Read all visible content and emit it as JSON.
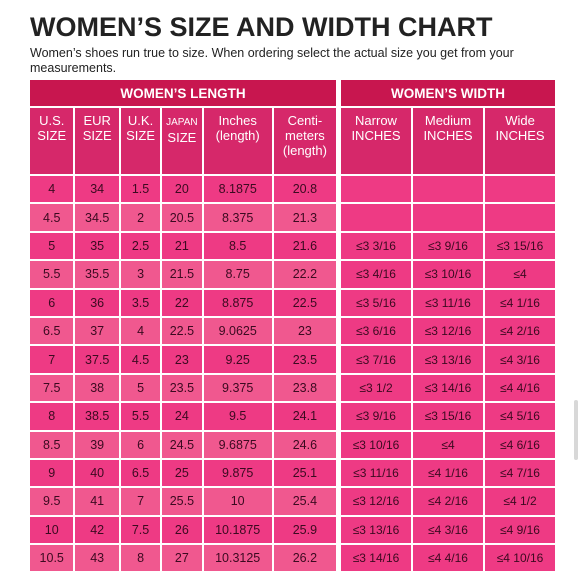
{
  "title": "WOMEN’S SIZE AND WIDTH CHART",
  "subtitle": "Women’s shoes run true to size.  When ordering select the actual size you get from your measurements.",
  "length": {
    "header": "WOMEN’S LENGTH",
    "columns": [
      [
        "U.S.",
        "SIZE"
      ],
      [
        "EUR",
        "SIZE"
      ],
      [
        "U.K.",
        "SIZE"
      ],
      [
        "JAPAN",
        "SIZE"
      ],
      [
        "Inches",
        "(length)"
      ],
      [
        "Centi-",
        "meters",
        "(length)"
      ]
    ],
    "rows": [
      [
        "4",
        "34",
        "1.5",
        "20",
        "8.1875",
        "20.8"
      ],
      [
        "4.5",
        "34.5",
        "2",
        "20.5",
        "8.375",
        "21.3"
      ],
      [
        "5",
        "35",
        "2.5",
        "21",
        "8.5",
        "21.6"
      ],
      [
        "5.5",
        "35.5",
        "3",
        "21.5",
        "8.75",
        "22.2"
      ],
      [
        "6",
        "36",
        "3.5",
        "22",
        "8.875",
        "22.5"
      ],
      [
        "6.5",
        "37",
        "4",
        "22.5",
        "9.0625",
        "23"
      ],
      [
        "7",
        "37.5",
        "4.5",
        "23",
        "9.25",
        "23.5"
      ],
      [
        "7.5",
        "38",
        "5",
        "23.5",
        "9.375",
        "23.8"
      ],
      [
        "8",
        "38.5",
        "5.5",
        "24",
        "9.5",
        "24.1"
      ],
      [
        "8.5",
        "39",
        "6",
        "24.5",
        "9.6875",
        "24.6"
      ],
      [
        "9",
        "40",
        "6.5",
        "25",
        "9.875",
        "25.1"
      ],
      [
        "9.5",
        "41",
        "7",
        "25.5",
        "10",
        "25.4"
      ],
      [
        "10",
        "42",
        "7.5",
        "26",
        "10.1875",
        "25.9"
      ],
      [
        "10.5",
        "43",
        "8",
        "27",
        "10.3125",
        "26.2"
      ]
    ]
  },
  "width": {
    "header": "WOMEN’S WIDTH",
    "columns": [
      [
        "Narrow",
        "INCHES"
      ],
      [
        "Medium",
        "INCHES"
      ],
      [
        "Wide",
        "INCHES"
      ]
    ],
    "rows": [
      [
        "",
        "",
        ""
      ],
      [
        "",
        "",
        ""
      ],
      [
        "≤3 3/16",
        "≤3 9/16",
        "≤3 15/16"
      ],
      [
        "≤3 4/16",
        "≤3 10/16",
        "≤4"
      ],
      [
        "≤3 5/16",
        "≤3 11/16",
        "≤4 1/16"
      ],
      [
        "≤3 6/16",
        "≤3 12/16",
        "≤4 2/16"
      ],
      [
        "≤3 7/16",
        "≤3 13/16",
        "≤4 3/16"
      ],
      [
        "≤3 1/2",
        "≤3 14/16",
        "≤4 4/16"
      ],
      [
        "≤3 9/16",
        "≤3 15/16",
        "≤4 5/16"
      ],
      [
        "≤3 10/16",
        "≤4",
        "≤4 6/16"
      ],
      [
        "≤3 11/16",
        "≤4 1/16",
        "≤4 7/16"
      ],
      [
        "≤3 12/16",
        "≤4 2/16",
        "≤4 1/2"
      ],
      [
        "≤3 13/16",
        "≤4 3/16",
        "≤4 9/16"
      ],
      [
        "≤3 14/16",
        "≤4 4/16",
        "≤4 10/16"
      ]
    ]
  }
}
